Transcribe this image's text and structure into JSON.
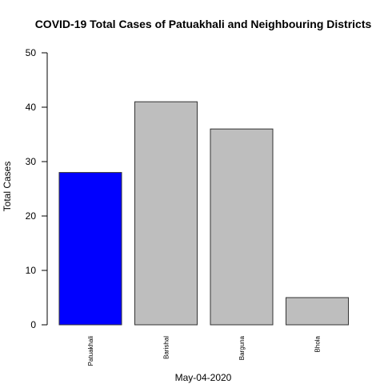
{
  "chart_data": {
    "type": "bar",
    "title": "COVID-19 Total Cases of Patuakhali and Neighbouring Districts",
    "xlabel": "May-04-2020",
    "ylabel": "Total Cases",
    "categories": [
      "Patuakhali",
      "Barishal",
      "Barguna",
      "Bhola"
    ],
    "values": [
      28,
      41,
      36,
      5
    ],
    "colors": [
      "#0000ff",
      "#bebebe",
      "#bebebe",
      "#bebebe"
    ],
    "ylim": [
      0,
      50
    ],
    "yticks": [
      0,
      10,
      20,
      30,
      40,
      50
    ],
    "grid": false,
    "legend": "none"
  }
}
